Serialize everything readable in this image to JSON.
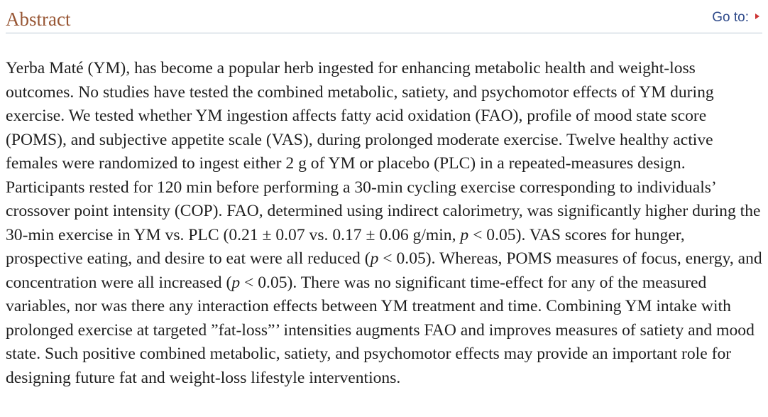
{
  "section": {
    "title": "Abstract",
    "goto_label": "Go to:"
  },
  "abstract": {
    "segments": [
      "Yerba Maté (YM), has become a popular herb ingested for enhancing metabolic health and weight-loss outcomes. No studies have tested the combined metabolic, satiety, and psychomotor effects of YM during exercise. We tested whether YM ingestion affects fatty acid oxidation (FAO), profile of mood state score (POMS), and subjective appetite scale (VAS), during prolonged moderate exercise. Twelve healthy active females were randomized to ingest either 2 g of YM or placebo (PLC) in a repeated-measures design. Participants rested for 120 min before performing a 30-min cycling exercise corresponding to individuals’ crossover point intensity (COP). FAO, determined using indirect calorimetry, was significantly higher during the 30-min exercise in YM vs. PLC (0.21 ± 0.07 vs. 0.17 ± 0.06 g/min, ",
      "p",
      " < 0.05). VAS scores for hunger, prospective eating, and desire to eat were all reduced (",
      "p",
      " < 0.05). Whereas, POMS measures of focus, energy, and concentration were all increased (",
      "p",
      " < 0.05). There was no significant time-effect for any of the measured variables, nor was there any interaction effects between YM treatment and time. Combining YM intake with prolonged exercise at targeted ”fat-loss”’ intensities augments FAO and improves measures of satiety and mood state. Such positive combined metabolic, satiety, and psychomotor effects may provide an important role for designing future fat and weight-loss lifestyle interventions."
    ]
  },
  "colors": {
    "title": "#985735",
    "link": "#2f4a8a",
    "arrow": "#cc3333",
    "rule": "#b9c7d3",
    "text": "#1f1f1f"
  },
  "icons": {
    "goto_arrow": "triangle-right-icon"
  }
}
